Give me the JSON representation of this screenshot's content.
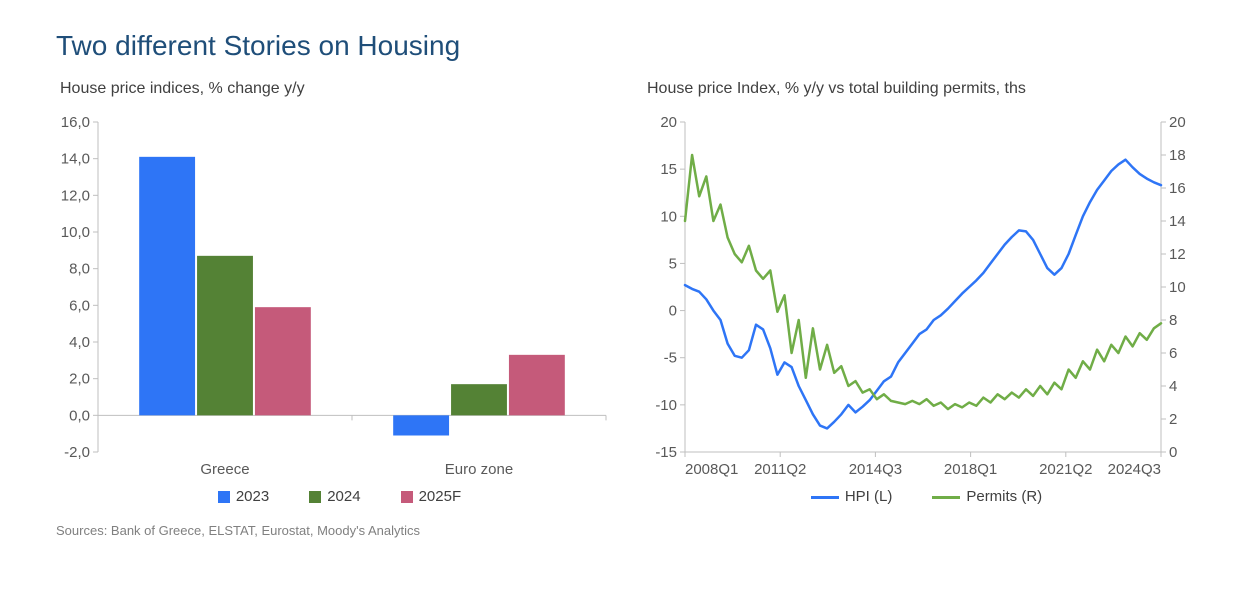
{
  "title": "Two different Stories on Housing",
  "title_color": "#1f4e79",
  "title_fontsize": 28,
  "sources": "Sources: Bank of Greece, ELSTAT, Eurostat, Moody's Analytics",
  "bar_chart": {
    "type": "bar",
    "subtitle": "House price indices, % change y/y",
    "categories": [
      "Greece",
      "Euro zone"
    ],
    "series": [
      {
        "name": "2023",
        "color": "#2e75f6",
        "values": [
          14.1,
          -1.1
        ]
      },
      {
        "name": "2024",
        "color": "#548235",
        "values": [
          8.7,
          1.7
        ]
      },
      {
        "name": "2025F",
        "color": "#c55a7a",
        "values": [
          5.9,
          3.3
        ]
      }
    ],
    "ylim": [
      -2,
      16
    ],
    "ytick_step": 2,
    "yticks": [
      "-2,0",
      "0,0",
      "2,0",
      "4,0",
      "6,0",
      "8,0",
      "10,0",
      "12,0",
      "14,0",
      "16,0"
    ],
    "axis_color": "#bfbfbf",
    "tick_color": "#bfbfbf",
    "text_color": "#595959",
    "label_fontsize": 15,
    "bar_width": 0.22,
    "group_gap": 0.34,
    "background_color": "#ffffff"
  },
  "line_chart": {
    "type": "line-dual-axis",
    "subtitle": "House price Index, % y/y vs total building permits, ths",
    "x_categories": [
      "2008Q1",
      "2011Q2",
      "2014Q3",
      "2018Q1",
      "2021Q2",
      "2024Q3"
    ],
    "x_n": 68,
    "left": {
      "ylim": [
        -15,
        20
      ],
      "ytick_step": 5,
      "axis_color": "#bfbfbf",
      "text_color": "#595959"
    },
    "right": {
      "ylim": [
        0,
        20
      ],
      "ytick_step": 2,
      "axis_color": "#bfbfbf",
      "text_color": "#595959"
    },
    "series": [
      {
        "name": "HPI (L)",
        "axis": "left",
        "color": "#2e75f6",
        "width": 2.5,
        "values": [
          2.7,
          2.3,
          2.0,
          1.2,
          0,
          -1,
          -3.5,
          -4.8,
          -5.0,
          -4.2,
          -1.5,
          -2.0,
          -4.0,
          -6.8,
          -5.5,
          -6,
          -8,
          -9.5,
          -11,
          -12.2,
          -12.5,
          -11.8,
          -11.0,
          -10.0,
          -10.8,
          -10.2,
          -9.5,
          -8.5,
          -7.5,
          -7.0,
          -5.5,
          -4.5,
          -3.5,
          -2.5,
          -2.0,
          -1.0,
          -0.5,
          0.2,
          1.0,
          1.8,
          2.5,
          3.2,
          4.0,
          5.0,
          6.0,
          7.0,
          7.8,
          8.5,
          8.4,
          7.5,
          6.0,
          4.5,
          3.8,
          4.5,
          6.0,
          8.0,
          10.0,
          11.5,
          12.8,
          13.8,
          14.8,
          15.5,
          16.0,
          15.2,
          14.5,
          14.0,
          13.6,
          13.3
        ]
      },
      {
        "name": "Permits (R)",
        "axis": "right",
        "color": "#70ad47",
        "width": 2.5,
        "values": [
          14,
          18,
          15.5,
          16.7,
          14,
          15,
          13,
          12,
          11.5,
          12.5,
          11,
          10.5,
          11,
          8.5,
          9.5,
          6,
          8,
          4.5,
          7.5,
          5,
          6.5,
          4.8,
          5.2,
          4.0,
          4.3,
          3.6,
          3.8,
          3.2,
          3.5,
          3.1,
          3.0,
          2.9,
          3.1,
          2.9,
          3.2,
          2.8,
          3.0,
          2.6,
          2.9,
          2.7,
          3.0,
          2.8,
          3.3,
          3.0,
          3.5,
          3.2,
          3.6,
          3.3,
          3.8,
          3.4,
          4.0,
          3.5,
          4.2,
          3.8,
          5.0,
          4.5,
          5.5,
          5.0,
          6.2,
          5.5,
          6.5,
          6.0,
          7.0,
          6.4,
          7.2,
          6.8,
          7.5,
          7.8
        ]
      }
    ],
    "legend_labels": {
      "hpi": "HPI (L)",
      "permits": "Permits (R)"
    },
    "label_fontsize": 15,
    "background_color": "#ffffff"
  }
}
